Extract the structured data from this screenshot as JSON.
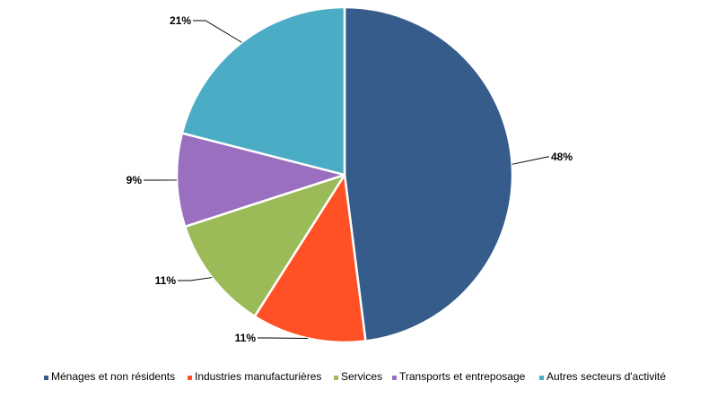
{
  "chart_data": {
    "type": "pie",
    "title": "",
    "legend_position": "bottom",
    "slices": [
      {
        "name": "Ménages et non résidents",
        "value": 48,
        "label": "48%",
        "color": "#365C8C"
      },
      {
        "name": "Industries manufacturières",
        "value": 11,
        "label": "11%",
        "color": "#FF5125"
      },
      {
        "name": "Services",
        "value": 11,
        "label": "11%",
        "color": "#9BBB59"
      },
      {
        "name": "Transports et entreposage",
        "value": 9,
        "label": "9%",
        "color": "#9B6FBF"
      },
      {
        "name": "Autres secteurs d'activité",
        "value": 21,
        "label": "21%",
        "color": "#4BACC6"
      }
    ]
  }
}
